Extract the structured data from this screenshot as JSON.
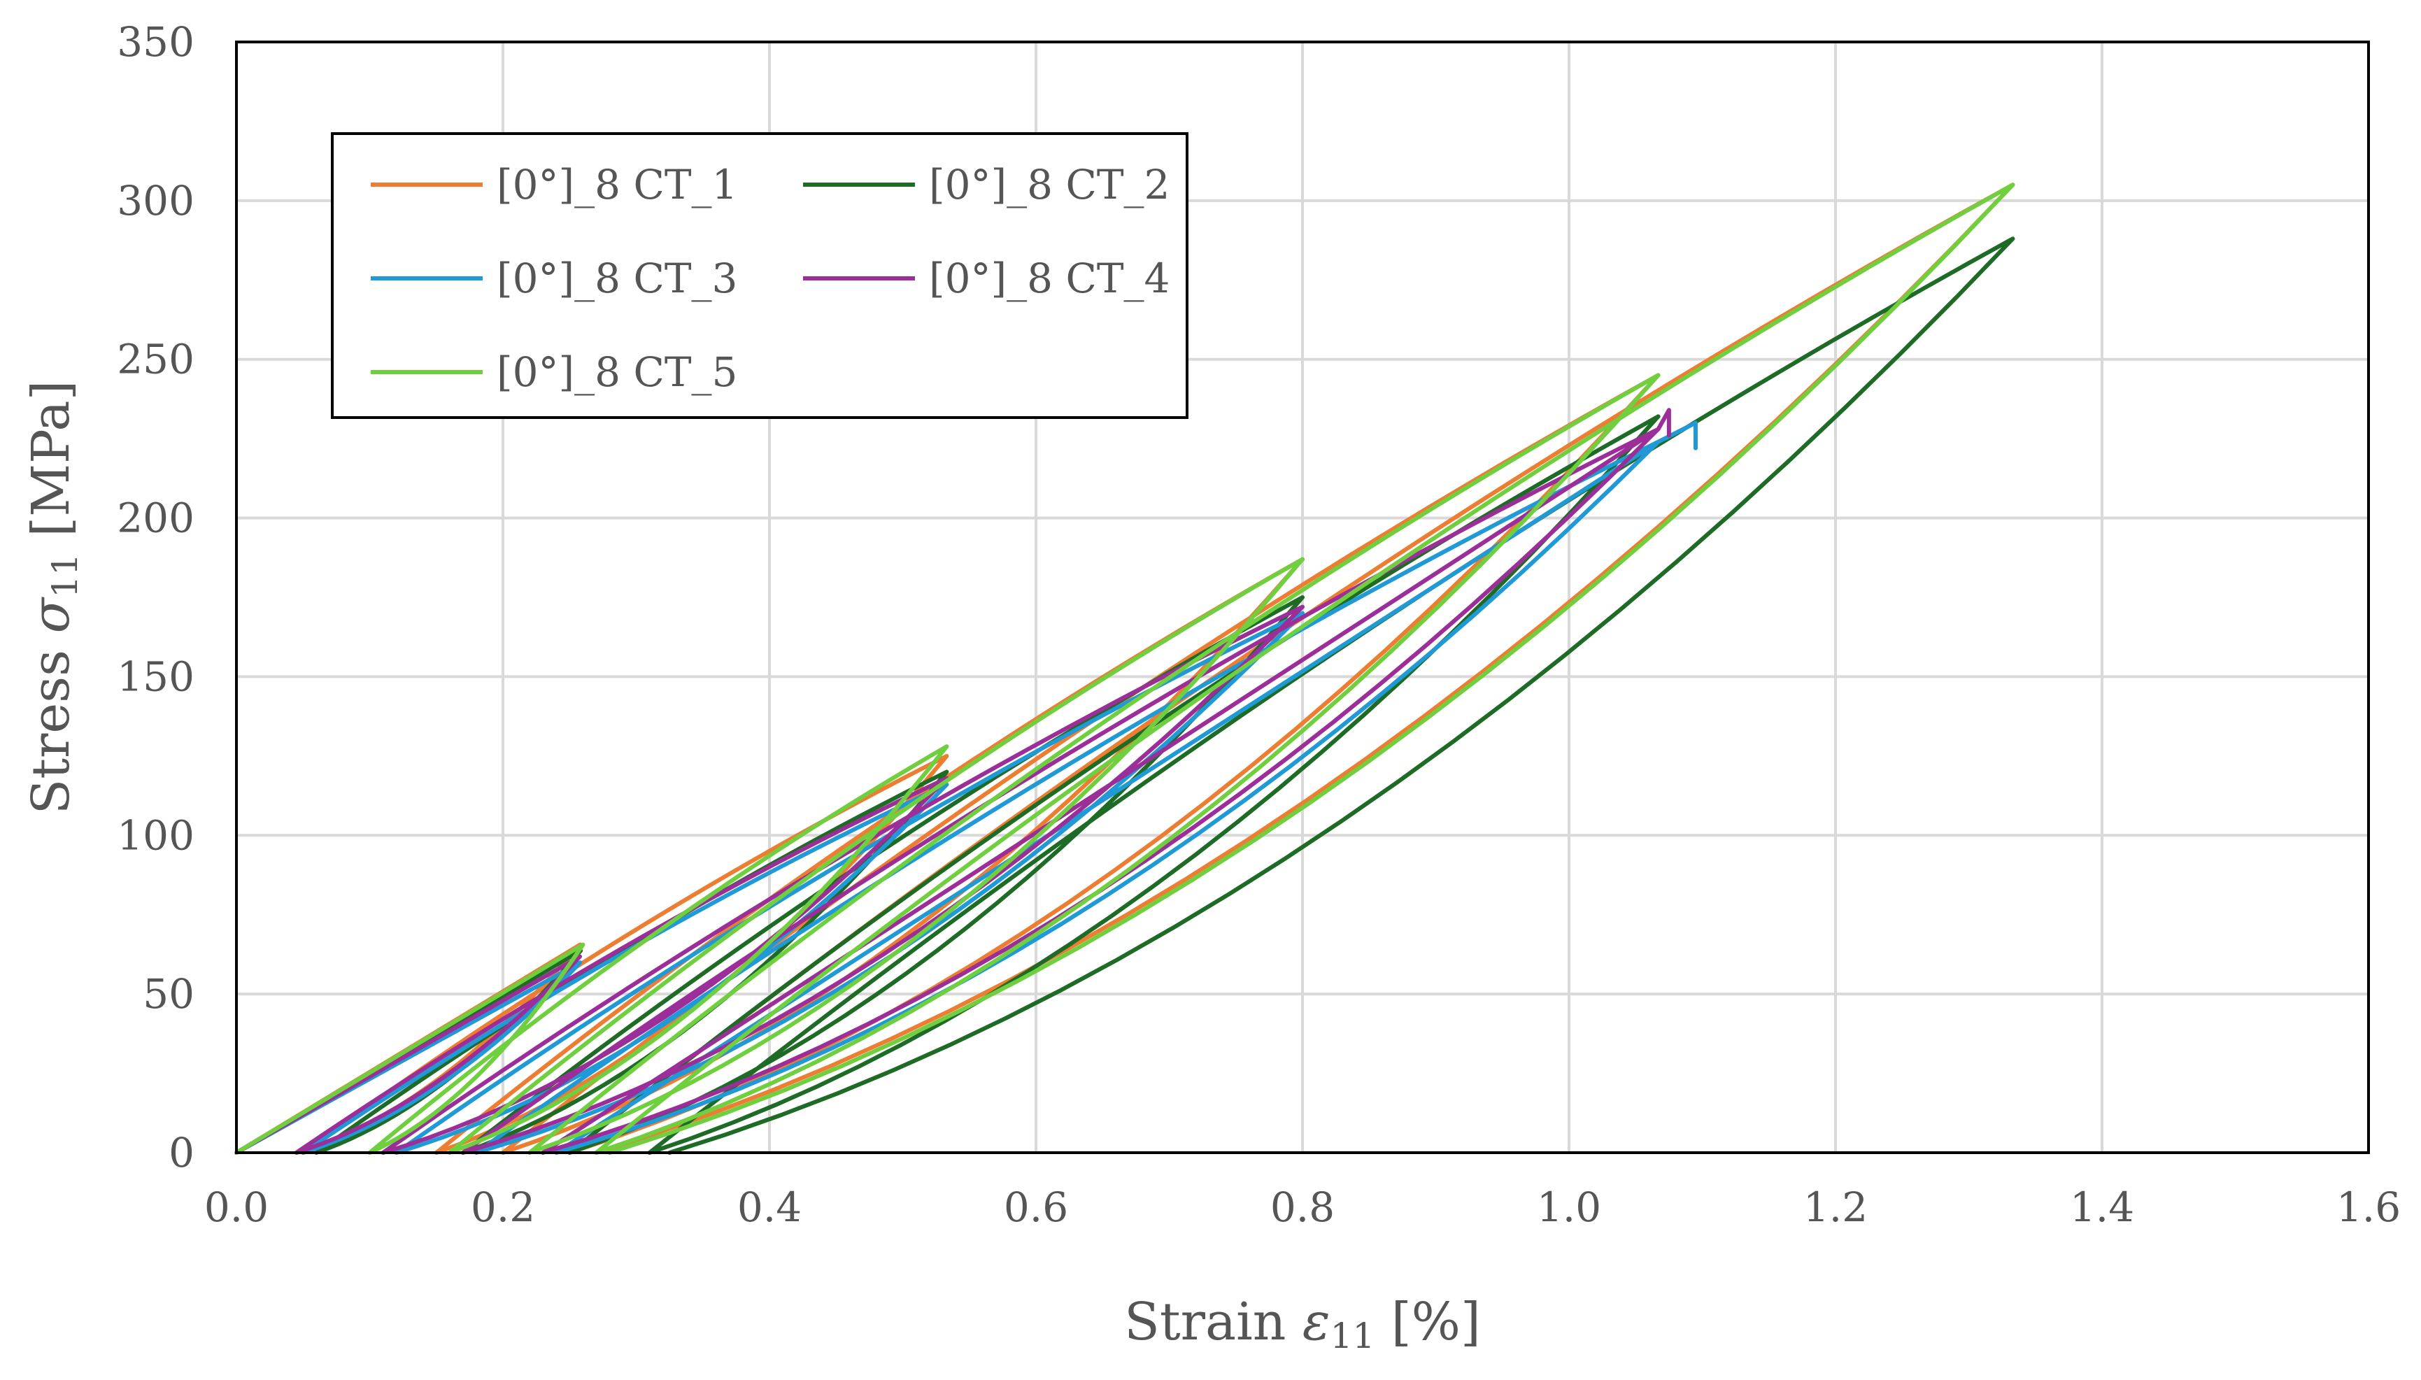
{
  "chart_data": {
    "type": "line",
    "title": "",
    "xlabel_main": "Strain ",
    "xlabel_symbol": "ε",
    "xlabel_sub": "11",
    "xlabel_unit": " [%]",
    "ylabel_main": "Stress ",
    "ylabel_symbol": "σ",
    "ylabel_sub": "11",
    "ylabel_unit": " [MPa]",
    "xlim": [
      0,
      1.6
    ],
    "ylim": [
      0,
      350
    ],
    "x_ticks": [
      "0.0",
      "0.2",
      "0.4",
      "0.6",
      "0.8",
      "1.0",
      "1.2",
      "1.4",
      "1.6"
    ],
    "y_ticks": [
      "0",
      "50",
      "100",
      "150",
      "200",
      "250",
      "300",
      "350"
    ],
    "grid": true,
    "legend_position": "top-left",
    "series": [
      {
        "name": "[0°]_8 CT_1",
        "color": "#ed7d31",
        "peaks": [
          [
            0.267,
            70
          ],
          [
            0.533,
            125
          ],
          [
            0.8,
            187
          ],
          [
            1.067,
            245
          ],
          [
            1.333,
            305
          ]
        ],
        "residuals": [
          0.05,
          0.15,
          0.2,
          0.25,
          0.27
        ]
      },
      {
        "name": "[0°]_8 CT_2",
        "color": "#1e6b26",
        "peaks": [
          [
            0.267,
            68
          ],
          [
            0.533,
            120
          ],
          [
            0.8,
            175
          ],
          [
            1.067,
            232
          ],
          [
            1.333,
            288
          ]
        ],
        "residuals": [
          0.06,
          0.17,
          0.25,
          0.31,
          0.325
        ]
      },
      {
        "name": "[0°]_8 CT_3",
        "color": "#1f9ad6",
        "peaks": [
          [
            0.267,
            64
          ],
          [
            0.533,
            116
          ],
          [
            0.8,
            170
          ],
          [
            1.067,
            224
          ]
        ],
        "residuals": [
          0.05,
          0.12,
          0.18,
          0.24
        ],
        "fail_point": [
          1.095,
          222
        ]
      },
      {
        "name": "[0°]_8 CT_4",
        "color": "#9b2e98",
        "peaks": [
          [
            0.267,
            66
          ],
          [
            0.533,
            118
          ],
          [
            0.8,
            172
          ],
          [
            1.067,
            228
          ]
        ],
        "residuals": [
          0.045,
          0.11,
          0.17,
          0.23
        ],
        "fail_point": [
          1.075,
          226
        ]
      },
      {
        "name": "[0°]_8 CT_5",
        "color": "#6fcf3f",
        "peaks": [
          [
            0.267,
            70
          ],
          [
            0.533,
            128
          ],
          [
            0.8,
            187
          ],
          [
            1.067,
            245
          ],
          [
            1.333,
            305
          ]
        ],
        "residuals": [
          0.1,
          0.16,
          0.22,
          0.27,
          0.28
        ]
      }
    ]
  }
}
